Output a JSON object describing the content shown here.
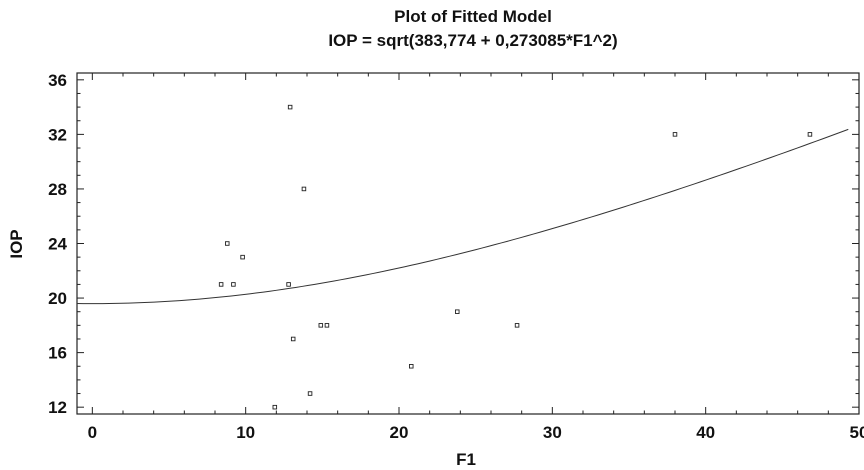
{
  "chart_data": {
    "type": "scatter",
    "title": "Plot of Fitted Model",
    "subtitle": "IOP = sqrt(383,774 + 0,273085*F1^2)",
    "xlabel": "F1",
    "ylabel": "IOP",
    "xlim": [
      -1,
      50
    ],
    "ylim": [
      11.5,
      36.5
    ],
    "xticks": [
      0,
      10,
      20,
      30,
      40,
      50
    ],
    "yticks": [
      12,
      16,
      20,
      24,
      28,
      32,
      36
    ],
    "grid": false,
    "points": [
      {
        "x": 8.4,
        "y": 21
      },
      {
        "x": 8.8,
        "y": 24
      },
      {
        "x": 9.2,
        "y": 21
      },
      {
        "x": 9.8,
        "y": 23
      },
      {
        "x": 11.9,
        "y": 12
      },
      {
        "x": 12.8,
        "y": 21
      },
      {
        "x": 12.9,
        "y": 34
      },
      {
        "x": 13.1,
        "y": 17
      },
      {
        "x": 13.8,
        "y": 28
      },
      {
        "x": 14.2,
        "y": 13
      },
      {
        "x": 14.9,
        "y": 18
      },
      {
        "x": 15.3,
        "y": 18
      },
      {
        "x": 20.8,
        "y": 15
      },
      {
        "x": 23.8,
        "y": 19
      },
      {
        "x": 27.7,
        "y": 18
      },
      {
        "x": 38.0,
        "y": 32
      },
      {
        "x": 46.8,
        "y": 32
      }
    ],
    "fitted_model": {
      "a": 383.774,
      "b": 0.273085,
      "x_range": [
        -1,
        49.3
      ]
    }
  }
}
